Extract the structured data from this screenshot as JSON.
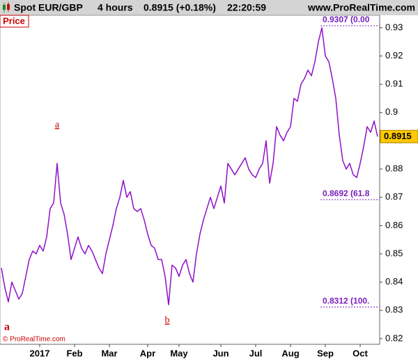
{
  "header": {
    "title": "Spot EUR/GBP",
    "period": "4 hours",
    "quote": "0.8915 (+0.18%)",
    "time": "22:20:59",
    "site": "www.ProRealTime.com"
  },
  "chart_data": {
    "type": "line",
    "panel_label": "Price",
    "color": "#8e10c8",
    "categories": [
      null,
      null,
      null,
      null,
      null,
      null,
      null,
      null,
      null,
      null,
      null,
      "2017",
      null,
      null,
      null,
      null,
      null,
      null,
      null,
      null,
      null,
      "Feb",
      null,
      null,
      null,
      null,
      null,
      null,
      null,
      null,
      null,
      "Mar",
      null,
      null,
      null,
      null,
      null,
      null,
      null,
      null,
      null,
      null,
      "Apr",
      null,
      null,
      null,
      null,
      null,
      null,
      null,
      null,
      "May",
      null,
      null,
      null,
      null,
      null,
      null,
      null,
      null,
      null,
      null,
      null,
      "Jun",
      null,
      null,
      null,
      null,
      null,
      null,
      null,
      null,
      null,
      "Jul",
      null,
      null,
      null,
      null,
      null,
      null,
      null,
      null,
      null,
      "Aug",
      null,
      null,
      null,
      null,
      null,
      null,
      null,
      null,
      null,
      "Sep",
      null,
      null,
      null,
      null,
      null,
      null,
      null,
      null,
      null,
      "Oct",
      null,
      null,
      null,
      null,
      null
    ],
    "values": [
      0.845,
      0.838,
      0.833,
      0.84,
      0.837,
      0.834,
      0.836,
      0.842,
      0.848,
      0.851,
      0.85,
      0.853,
      0.851,
      0.856,
      0.866,
      0.868,
      0.882,
      0.868,
      0.864,
      0.857,
      0.848,
      0.852,
      0.856,
      0.852,
      0.85,
      0.853,
      0.851,
      0.848,
      0.845,
      0.843,
      0.85,
      0.855,
      0.86,
      0.866,
      0.87,
      0.876,
      0.87,
      0.872,
      0.866,
      0.865,
      0.866,
      0.862,
      0.857,
      0.853,
      0.852,
      0.848,
      0.848,
      0.842,
      0.832,
      0.846,
      0.845,
      0.842,
      0.846,
      0.848,
      0.843,
      0.84,
      0.85,
      0.857,
      0.862,
      0.866,
      0.87,
      0.866,
      0.87,
      0.874,
      0.868,
      0.882,
      0.88,
      0.878,
      0.88,
      0.882,
      0.884,
      0.88,
      0.878,
      0.877,
      0.88,
      0.882,
      0.89,
      0.875,
      0.882,
      0.895,
      0.892,
      0.89,
      0.893,
      0.895,
      0.905,
      0.904,
      0.91,
      0.912,
      0.915,
      0.913,
      0.918,
      0.925,
      0.93,
      0.92,
      0.918,
      0.912,
      0.905,
      0.892,
      0.883,
      0.88,
      0.882,
      0.878,
      0.877,
      0.882,
      0.888,
      0.895,
      0.893,
      0.897,
      0.8915
    ],
    "ylim": [
      0.818,
      0.9344
    ],
    "yticks": [
      0.82,
      0.83,
      0.84,
      0.85,
      0.86,
      0.87,
      0.88,
      0.89,
      0.9,
      0.91,
      0.92,
      0.93
    ],
    "last_price": 0.8915,
    "levels": [
      {
        "value": 0.9307,
        "label": "0.9307 (0.00"
      },
      {
        "value": 0.8692,
        "label": "0.8692 (61.8"
      },
      {
        "value": 0.8312,
        "label": "0.8312 (100."
      }
    ],
    "wave_labels": [
      "a",
      "b",
      "a"
    ],
    "copyright": "© ProRealTime.com"
  }
}
